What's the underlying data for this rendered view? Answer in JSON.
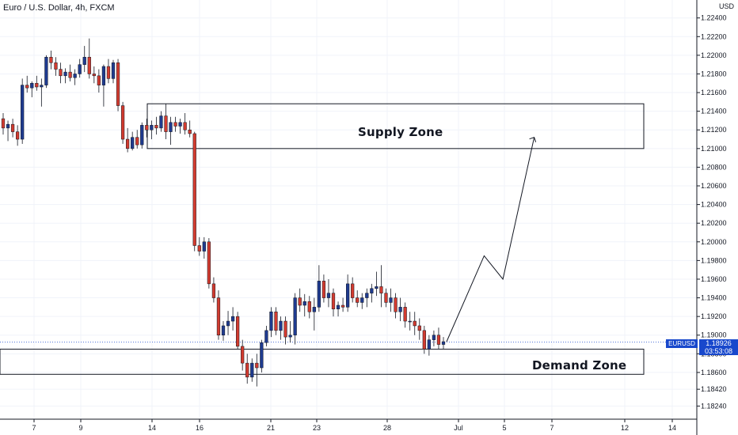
{
  "header": {
    "title": "Euro / U.S. Dollar, 4h, FXCM",
    "unit": "USD"
  },
  "ticker": {
    "symbol": "EURUSD",
    "price": "1.18926",
    "countdown": "03:53:08"
  },
  "zones": {
    "supply_label": "Supply Zone",
    "demand_label": "Demand Zone"
  },
  "colors": {
    "up": "#1f3b8f",
    "down": "#d23b2f",
    "accent": "#1848cc",
    "grid": "#f0f3fa"
  },
  "chart_data": {
    "type": "candlestick",
    "title": "Euro / U.S. Dollar, 4h, FXCM",
    "xlabel": "",
    "ylabel": "USD",
    "ylim": [
      1.1815,
      1.2255
    ],
    "y_ticks": [
      "1.22400",
      "1.22200",
      "1.22000",
      "1.21800",
      "1.21600",
      "1.21400",
      "1.21200",
      "1.21000",
      "1.20800",
      "1.20600",
      "1.20400",
      "1.20200",
      "1.20000",
      "1.19800",
      "1.19600",
      "1.19400",
      "1.19200",
      "1.19000",
      "1.18800",
      "1.18600",
      "1.18420",
      "1.18240"
    ],
    "x_ticks": [
      "7",
      "9",
      "14",
      "16",
      "21",
      "23",
      "28",
      "Jul",
      "5",
      "7",
      "12",
      "14"
    ],
    "candles": [
      [
        1.2132,
        1.2138,
        1.2115,
        1.2122
      ],
      [
        1.2122,
        1.213,
        1.2108,
        1.2126
      ],
      [
        1.2126,
        1.2132,
        1.2112,
        1.2118
      ],
      [
        1.2118,
        1.2125,
        1.2103,
        1.211
      ],
      [
        1.211,
        1.2175,
        1.2105,
        1.2168
      ],
      [
        1.2168,
        1.2178,
        1.216,
        1.2165
      ],
      [
        1.2165,
        1.2172,
        1.2155,
        1.217
      ],
      [
        1.217,
        1.2178,
        1.2162,
        1.2166
      ],
      [
        1.2166,
        1.2175,
        1.2145,
        1.2168
      ],
      [
        1.2168,
        1.22,
        1.2165,
        1.2198
      ],
      [
        1.2198,
        1.2205,
        1.2185,
        1.2192
      ],
      [
        1.2192,
        1.2198,
        1.2178,
        1.2185
      ],
      [
        1.2185,
        1.2192,
        1.217,
        1.2178
      ],
      [
        1.2178,
        1.2186,
        1.217,
        1.2182
      ],
      [
        1.2182,
        1.219,
        1.2172,
        1.2176
      ],
      [
        1.2176,
        1.2185,
        1.2168,
        1.218
      ],
      [
        1.218,
        1.2196,
        1.2176,
        1.219
      ],
      [
        1.219,
        1.221,
        1.2182,
        1.2198
      ],
      [
        1.2198,
        1.2218,
        1.2175,
        1.218
      ],
      [
        1.218,
        1.2188,
        1.217,
        1.2178
      ],
      [
        1.2178,
        1.2185,
        1.216,
        1.2168
      ],
      [
        1.2168,
        1.219,
        1.2145,
        1.2188
      ],
      [
        1.2188,
        1.2196,
        1.217,
        1.2175
      ],
      [
        1.2175,
        1.2195,
        1.217,
        1.2192
      ],
      [
        1.2192,
        1.2196,
        1.214,
        1.2146
      ],
      [
        1.2146,
        1.215,
        1.2105,
        1.211
      ],
      [
        1.211,
        1.2122,
        1.2096,
        1.21
      ],
      [
        1.21,
        1.2118,
        1.2098,
        1.2112
      ],
      [
        1.2112,
        1.212,
        1.21,
        1.2104
      ],
      [
        1.2104,
        1.2128,
        1.21,
        1.2125
      ],
      [
        1.2125,
        1.2132,
        1.2112,
        1.212
      ],
      [
        1.212,
        1.213,
        1.211,
        1.2125
      ],
      [
        1.2125,
        1.2134,
        1.2115,
        1.2122
      ],
      [
        1.2122,
        1.214,
        1.2118,
        1.2135
      ],
      [
        1.2135,
        1.2148,
        1.211,
        1.2118
      ],
      [
        1.2118,
        1.2134,
        1.2104,
        1.2128
      ],
      [
        1.2128,
        1.2134,
        1.2118,
        1.2124
      ],
      [
        1.2124,
        1.2132,
        1.2116,
        1.2128
      ],
      [
        1.2128,
        1.2138,
        1.2115,
        1.212
      ],
      [
        1.212,
        1.213,
        1.2112,
        1.2116
      ],
      [
        1.2116,
        1.2118,
        1.199,
        1.1996
      ],
      [
        1.1996,
        1.2005,
        1.1985,
        1.199
      ],
      [
        1.199,
        1.2005,
        1.1982,
        1.2
      ],
      [
        1.2,
        1.2004,
        1.195,
        1.1955
      ],
      [
        1.1955,
        1.1962,
        1.1935,
        1.194
      ],
      [
        1.194,
        1.1948,
        1.1895,
        1.19
      ],
      [
        1.19,
        1.1915,
        1.1894,
        1.191
      ],
      [
        1.191,
        1.1926,
        1.19,
        1.1915
      ],
      [
        1.1915,
        1.193,
        1.1905,
        1.192
      ],
      [
        1.192,
        1.1925,
        1.1885,
        1.1888
      ],
      [
        1.1888,
        1.1895,
        1.1862,
        1.187
      ],
      [
        1.187,
        1.188,
        1.1848,
        1.1855
      ],
      [
        1.1855,
        1.1875,
        1.185,
        1.187
      ],
      [
        1.187,
        1.188,
        1.1845,
        1.1865
      ],
      [
        1.1865,
        1.1895,
        1.186,
        1.1892
      ],
      [
        1.1892,
        1.191,
        1.1888,
        1.1905
      ],
      [
        1.1905,
        1.193,
        1.1898,
        1.1925
      ],
      [
        1.1925,
        1.193,
        1.19,
        1.1905
      ],
      [
        1.1905,
        1.192,
        1.1895,
        1.1915
      ],
      [
        1.1915,
        1.192,
        1.189,
        1.1898
      ],
      [
        1.1898,
        1.1915,
        1.1892,
        1.19
      ],
      [
        1.19,
        1.1945,
        1.189,
        1.194
      ],
      [
        1.194,
        1.195,
        1.1925,
        1.1932
      ],
      [
        1.1932,
        1.1944,
        1.192,
        1.1936
      ],
      [
        1.1936,
        1.1942,
        1.1918,
        1.1925
      ],
      [
        1.1925,
        1.194,
        1.1905,
        1.193
      ],
      [
        1.193,
        1.1975,
        1.1925,
        1.1958
      ],
      [
        1.1958,
        1.1965,
        1.1935,
        1.194
      ],
      [
        1.194,
        1.196,
        1.193,
        1.1945
      ],
      [
        1.1945,
        1.195,
        1.192,
        1.1928
      ],
      [
        1.1928,
        1.1936,
        1.192,
        1.1932
      ],
      [
        1.1932,
        1.194,
        1.1925,
        1.193
      ],
      [
        1.193,
        1.1965,
        1.1925,
        1.1955
      ],
      [
        1.1955,
        1.1962,
        1.1935,
        1.194
      ],
      [
        1.194,
        1.1948,
        1.193,
        1.1935
      ],
      [
        1.1935,
        1.1945,
        1.1928,
        1.194
      ],
      [
        1.194,
        1.195,
        1.193,
        1.1945
      ],
      [
        1.1945,
        1.1955,
        1.1935,
        1.195
      ],
      [
        1.195,
        1.1968,
        1.1942,
        1.1952
      ],
      [
        1.1952,
        1.1975,
        1.193,
        1.1945
      ],
      [
        1.1945,
        1.195,
        1.193,
        1.1935
      ],
      [
        1.1935,
        1.195,
        1.1925,
        1.194
      ],
      [
        1.194,
        1.1945,
        1.1918,
        1.1925
      ],
      [
        1.1925,
        1.194,
        1.1915,
        1.193
      ],
      [
        1.193,
        1.1935,
        1.1908,
        1.1915
      ],
      [
        1.1915,
        1.1925,
        1.1905,
        1.1915
      ],
      [
        1.1915,
        1.1925,
        1.19,
        1.191
      ],
      [
        1.191,
        1.1918,
        1.1895,
        1.1905
      ],
      [
        1.1905,
        1.191,
        1.188,
        1.1885
      ],
      [
        1.1885,
        1.19,
        1.1878,
        1.1895
      ],
      [
        1.1895,
        1.1905,
        1.1888,
        1.19
      ],
      [
        1.19,
        1.1908,
        1.1885,
        1.189
      ],
      [
        1.189,
        1.1898,
        1.1885,
        1.1893
      ]
    ],
    "supply_zone": [
      1.21,
      1.2148
    ],
    "demand_zone": [
      1.1858,
      1.1885
    ],
    "projection": [
      [
        1.1893,
        0
      ],
      [
        1.1985,
        6
      ],
      [
        1.196,
        9
      ],
      [
        1.2112,
        14
      ]
    ]
  }
}
